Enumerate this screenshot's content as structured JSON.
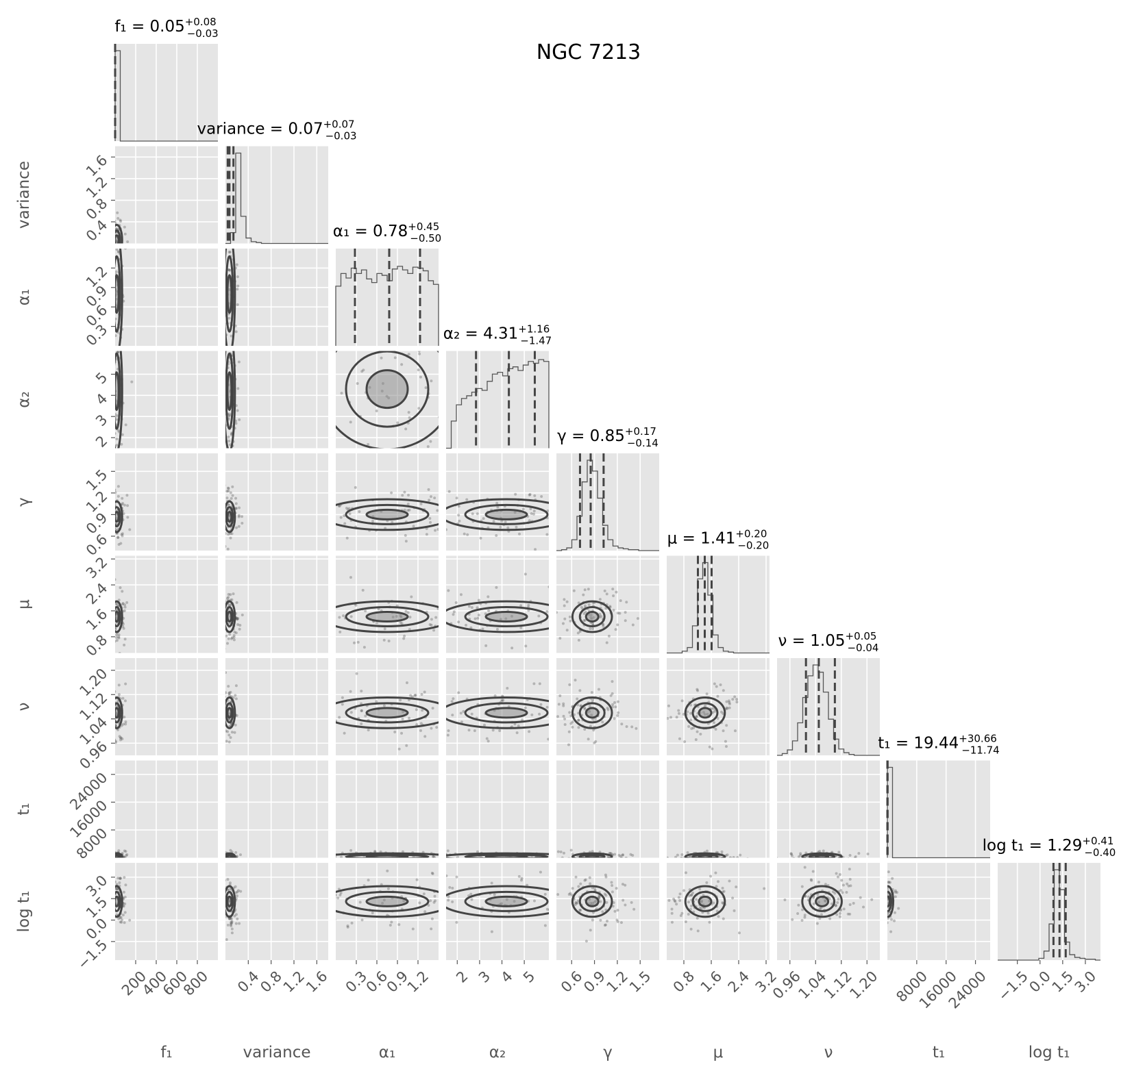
{
  "chart_data": {
    "type": "corner",
    "title": "NGC 7213",
    "grid": true,
    "parameters": [
      {
        "key": "f1",
        "label": "f₁",
        "title": {
          "name": "f₁",
          "value": "0.05",
          "plus": "+0.08",
          "minus": "−0.03"
        },
        "range": [
          0,
          1000
        ],
        "ticks": [
          200,
          400,
          600,
          800
        ],
        "tick_labels": [
          "200",
          "400",
          "600",
          "800"
        ],
        "quantiles": [
          0.02,
          0.05,
          0.13
        ]
      },
      {
        "key": "variance",
        "label": "variance",
        "title": {
          "name": "variance",
          "value": "0.07",
          "plus": "+0.07",
          "minus": "−0.03"
        },
        "range": [
          0.0,
          1.8
        ],
        "ticks": [
          0.4,
          0.8,
          1.2,
          1.6
        ],
        "tick_labels": [
          "0.4",
          "0.8",
          "1.2",
          "1.6"
        ],
        "quantiles": [
          0.04,
          0.07,
          0.14
        ]
      },
      {
        "key": "alpha1",
        "label": "α₁",
        "title": {
          "name": "α₁",
          "value": "0.78",
          "plus": "+0.45",
          "minus": "−0.50"
        },
        "range": [
          0.0,
          1.5
        ],
        "ticks": [
          0.3,
          0.6,
          0.9,
          1.2
        ],
        "tick_labels": [
          "0.3",
          "0.6",
          "0.9",
          "1.2"
        ],
        "quantiles": [
          0.28,
          0.78,
          1.23
        ]
      },
      {
        "key": "alpha2",
        "label": "α₂",
        "title": {
          "name": "α₂",
          "value": "4.31",
          "plus": "+1.16",
          "minus": "−1.47"
        },
        "range": [
          1.5,
          6.1
        ],
        "ticks": [
          2,
          3,
          4,
          5
        ],
        "tick_labels": [
          "2",
          "3",
          "4",
          "5"
        ],
        "quantiles": [
          2.84,
          4.31,
          5.47
        ]
      },
      {
        "key": "gamma",
        "label": "γ",
        "title": {
          "name": "γ",
          "value": "0.85",
          "plus": "+0.17",
          "minus": "−0.14"
        },
        "range": [
          0.4,
          1.75
        ],
        "ticks": [
          0.6,
          0.9,
          1.2,
          1.5
        ],
        "tick_labels": [
          "0.6",
          "0.9",
          "1.2",
          "1.5"
        ],
        "quantiles": [
          0.71,
          0.85,
          1.02
        ]
      },
      {
        "key": "mu",
        "label": "μ",
        "title": {
          "name": "μ",
          "value": "1.41",
          "plus": "+0.20",
          "minus": "−0.20"
        },
        "range": [
          0.3,
          3.3
        ],
        "ticks": [
          0.8,
          1.6,
          2.4,
          3.2
        ],
        "tick_labels": [
          "0.8",
          "1.6",
          "2.4",
          "3.2"
        ],
        "quantiles": [
          1.21,
          1.41,
          1.61
        ]
      },
      {
        "key": "nu",
        "label": "ν",
        "title": {
          "name": "ν",
          "value": "1.05",
          "plus": "+0.05",
          "minus": "−0.04"
        },
        "range": [
          0.92,
          1.24
        ],
        "ticks": [
          0.96,
          1.04,
          1.12,
          1.2
        ],
        "tick_labels": [
          "0.96",
          "1.04",
          "1.12",
          "1.20"
        ],
        "quantiles": [
          1.01,
          1.05,
          1.1
        ]
      },
      {
        "key": "t1",
        "label": "t₁",
        "title": {
          "name": "t₁",
          "value": "19.44",
          "plus": "+30.66",
          "minus": "−11.74"
        },
        "range": [
          0,
          28000
        ],
        "ticks": [
          8000,
          16000,
          24000
        ],
        "tick_labels": [
          "8000",
          "16000",
          "24000"
        ],
        "quantiles": [
          7.7,
          19.44,
          50.1
        ]
      },
      {
        "key": "logt1",
        "label": "log t₁",
        "title": {
          "name": "log t₁",
          "value": "1.29",
          "plus": "+0.41",
          "minus": "−0.40"
        },
        "range": [
          -2.8,
          4.0
        ],
        "ticks": [
          -1.5,
          0.0,
          1.5,
          3.0
        ],
        "tick_labels": [
          "−1.5",
          "0.0",
          "1.5",
          "3.0"
        ],
        "quantiles": [
          0.89,
          1.29,
          1.7
        ]
      }
    ],
    "histograms": {
      "f1": [
        100,
        0,
        0,
        0,
        0,
        0,
        0,
        0,
        0,
        0,
        0,
        0,
        0,
        0,
        0,
        0,
        0,
        0,
        0,
        0
      ],
      "variance": [
        0,
        12,
        100,
        30,
        6,
        2,
        1,
        0,
        0,
        0,
        0,
        0,
        0,
        0,
        0,
        0,
        0,
        0,
        0,
        0
      ],
      "alpha1": [
        66,
        80,
        75,
        86,
        80,
        84,
        74,
        70,
        80,
        78,
        72,
        85,
        88,
        84,
        80,
        87,
        86,
        83,
        72,
        68
      ],
      "alpha2": [
        0,
        30,
        48,
        55,
        58,
        62,
        66,
        64,
        74,
        82,
        84,
        80,
        88,
        90,
        86,
        92,
        96,
        94,
        98,
        96
      ],
      "gamma": [
        0,
        1,
        3,
        12,
        38,
        76,
        100,
        88,
        58,
        28,
        12,
        5,
        3,
        2,
        1,
        1,
        0,
        0,
        0,
        0
      ],
      "mu": [
        0,
        0,
        0,
        2,
        6,
        30,
        82,
        100,
        64,
        20,
        6,
        2,
        1,
        0,
        0,
        0,
        0,
        0,
        0,
        0
      ],
      "nu": [
        0,
        2,
        6,
        16,
        36,
        64,
        88,
        100,
        92,
        70,
        40,
        18,
        7,
        3,
        1,
        0,
        0,
        0,
        0,
        0
      ],
      "t1": [
        100,
        0,
        0,
        0,
        0,
        0,
        0,
        0,
        0,
        0,
        0,
        0,
        0,
        0,
        0,
        0,
        0,
        0,
        0,
        0
      ],
      "logt1": [
        0,
        0,
        0,
        0,
        0,
        0,
        0,
        0,
        2,
        10,
        40,
        100,
        78,
        20,
        6,
        3,
        2,
        1,
        1,
        0
      ]
    },
    "panel_centers": {
      "variance|f1": [
        15,
        0.06
      ],
      "alpha1|f1": [
        15,
        0.8
      ],
      "alpha1|variance": [
        0.07,
        0.8
      ],
      "alpha2|f1": [
        15,
        4.2
      ],
      "alpha2|variance": [
        0.07,
        4.2
      ],
      "alpha2|alpha1": [
        0.75,
        4.3
      ],
      "gamma|f1": [
        15,
        0.87
      ],
      "gamma|variance": [
        0.07,
        0.87
      ],
      "gamma|alpha1": [
        0.75,
        0.9
      ],
      "gamma|alpha2": [
        4.2,
        0.9
      ],
      "mu|f1": [
        15,
        1.42
      ],
      "mu|variance": [
        0.07,
        1.42
      ],
      "mu|alpha1": [
        0.75,
        1.42
      ],
      "mu|alpha2": [
        4.2,
        1.42
      ],
      "mu|gamma": [
        0.87,
        1.42
      ],
      "nu|f1": [
        15,
        1.06
      ],
      "nu|variance": [
        0.07,
        1.06
      ],
      "nu|alpha1": [
        0.75,
        1.06
      ],
      "nu|alpha2": [
        4.2,
        1.06
      ],
      "nu|gamma": [
        0.87,
        1.06
      ],
      "nu|mu": [
        1.42,
        1.06
      ],
      "t1|f1": [
        15,
        300
      ],
      "t1|variance": [
        0.07,
        300
      ],
      "t1|alpha1": [
        0.75,
        300
      ],
      "t1|alpha2": [
        4.2,
        300
      ],
      "t1|gamma": [
        0.87,
        300
      ],
      "t1|mu": [
        1.42,
        300
      ],
      "t1|nu": [
        1.06,
        300
      ],
      "logt1|f1": [
        15,
        1.3
      ],
      "logt1|variance": [
        0.07,
        1.3
      ],
      "logt1|alpha1": [
        0.75,
        1.3
      ],
      "logt1|alpha2": [
        4.2,
        1.3
      ],
      "logt1|gamma": [
        0.87,
        1.3
      ],
      "logt1|mu": [
        1.42,
        1.3
      ],
      "logt1|nu": [
        1.06,
        1.3
      ],
      "logt1|t1": [
        100,
        1.3
      ]
    }
  }
}
